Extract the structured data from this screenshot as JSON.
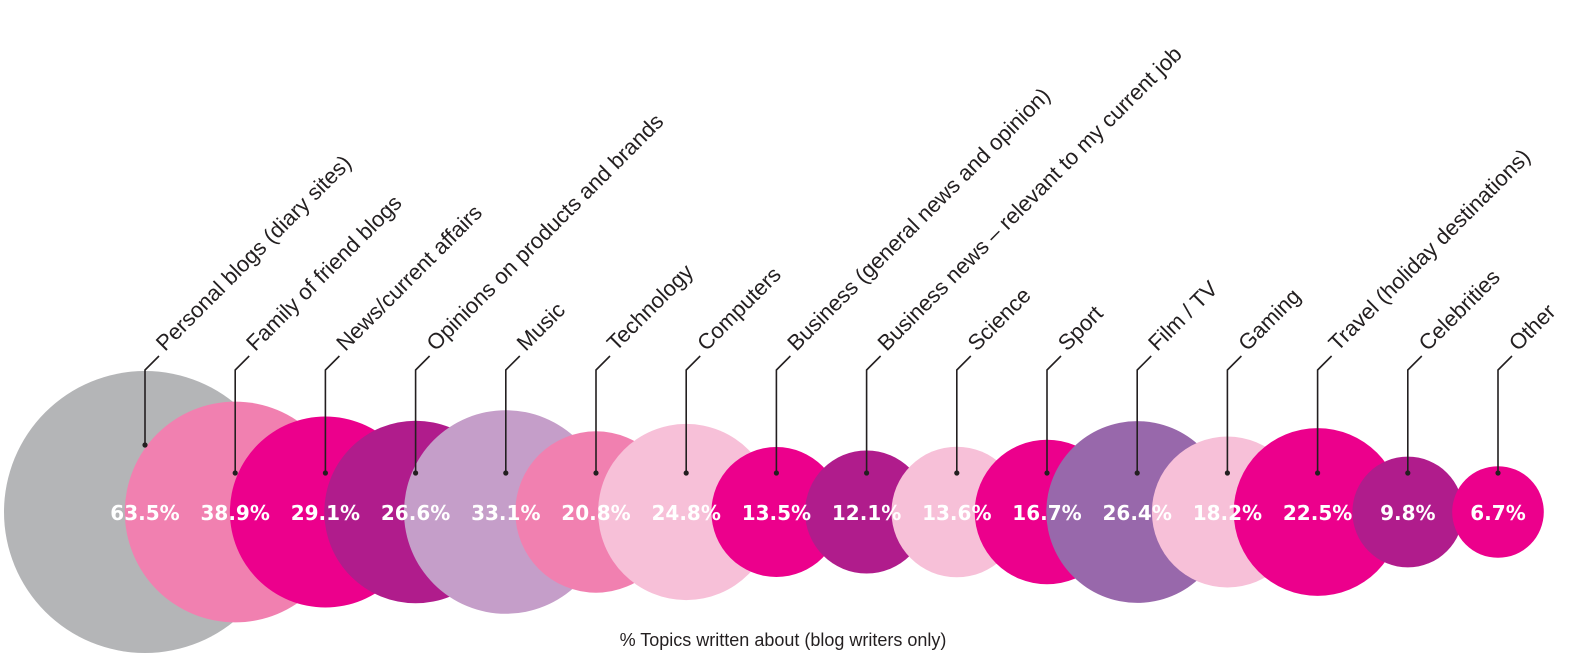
{
  "chart_data": {
    "type": "bubble",
    "caption": "% Topics written about (blog writers only)",
    "categories": [
      "Personal blogs (diary sites)",
      "Family of friend blogs",
      "News/current affairs",
      "Opinions on products and brands",
      "Music",
      "Technology",
      "Computers",
      "Business (general news and opinion)",
      "Business news – relevant to my current job",
      "Science",
      "Sport",
      "Film / TV",
      "Gaming",
      "Travel (holiday destinations)",
      "Celebrities",
      "Other"
    ],
    "values": [
      63.5,
      38.9,
      29.1,
      26.6,
      33.1,
      20.8,
      24.8,
      13.5,
      12.1,
      13.6,
      16.7,
      26.4,
      18.2,
      22.5,
      9.8,
      6.7
    ],
    "value_labels": [
      "63.5%",
      "38.9%",
      "29.1%",
      "26.6%",
      "33.1%",
      "20.8%",
      "24.8%",
      "13.5%",
      "12.1%",
      "13.6%",
      "16.7%",
      "26.4%",
      "18.2%",
      "22.5%",
      "9.8%",
      "6.7%"
    ],
    "colors": [
      "#b4b5b7",
      "#f180b0",
      "#ec008c",
      "#b01c8c",
      "#c59ec9",
      "#f180b0",
      "#f7c0d8",
      "#ec008c",
      "#b01c8c",
      "#f7c0d8",
      "#ec008c",
      "#9868ab",
      "#f7c0d8",
      "#ec008c",
      "#b01c8c",
      "#ec008c"
    ]
  }
}
